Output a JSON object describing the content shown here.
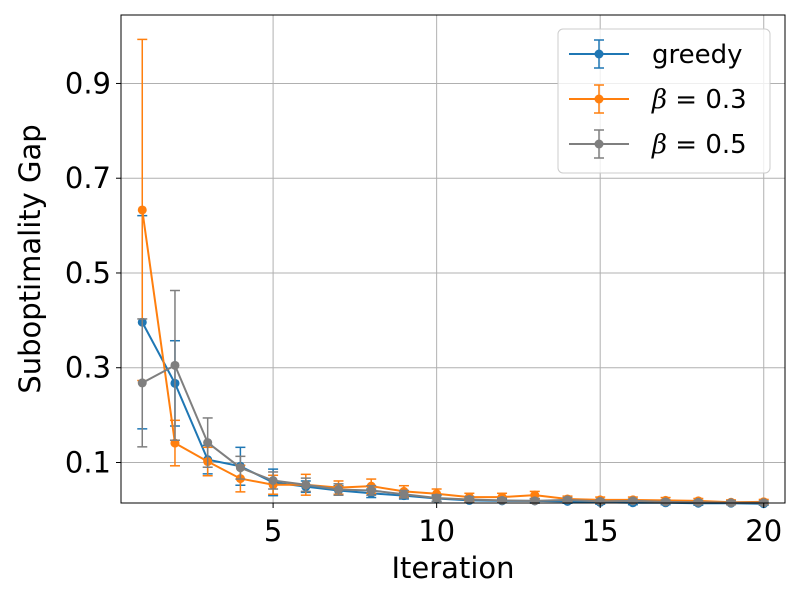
{
  "chart_data": {
    "type": "line",
    "title": "",
    "xlabel": "Iteration",
    "ylabel": "Suboptimality Gap",
    "xlim": [
      0.35,
      20.65
    ],
    "ylim": [
      0.0145,
      1.0445
    ],
    "xticks": [
      5,
      10,
      15,
      20
    ],
    "xtick_labels": [
      "5",
      "10",
      "15",
      "20"
    ],
    "yticks": [
      0.1,
      0.3,
      0.5,
      0.7,
      0.9
    ],
    "ytick_labels": [
      "0.1",
      "0.3",
      "0.5",
      "0.7",
      "0.9"
    ],
    "grid": true,
    "legend_position": "top-right",
    "x": [
      1,
      2,
      3,
      4,
      5,
      6,
      7,
      8,
      9,
      10,
      11,
      12,
      13,
      14,
      15,
      16,
      17,
      18,
      19,
      20
    ],
    "series": [
      {
        "name": "greedy",
        "legend_symbol": "",
        "legend_text": "greedy",
        "color": "#1f77b4",
        "values": [
          0.396,
          0.267,
          0.106,
          0.092,
          0.058,
          0.049,
          0.041,
          0.035,
          0.03,
          0.024,
          0.02,
          0.019,
          0.019,
          0.018,
          0.016,
          0.015,
          0.015,
          0.014,
          0.014,
          0.013
        ],
        "errors": [
          0.225,
          0.09,
          0.03,
          0.04,
          0.028,
          0.012,
          0.01,
          0.009,
          0.007,
          0.006,
          0.005,
          0.004,
          0.004,
          0.004,
          0.004,
          0.004,
          0.004,
          0.004,
          0.003,
          0.003
        ]
      },
      {
        "name": "β = 0.3",
        "legend_symbol": "β",
        "legend_text": " = 0.3",
        "color": "#ff7f0e",
        "values": [
          0.633,
          0.141,
          0.102,
          0.066,
          0.053,
          0.053,
          0.047,
          0.05,
          0.039,
          0.034,
          0.027,
          0.027,
          0.031,
          0.023,
          0.021,
          0.021,
          0.02,
          0.019,
          0.016,
          0.017
        ],
        "errors": [
          0.36,
          0.048,
          0.03,
          0.028,
          0.02,
          0.022,
          0.014,
          0.015,
          0.012,
          0.01,
          0.008,
          0.008,
          0.008,
          0.006,
          0.006,
          0.006,
          0.006,
          0.005,
          0.005,
          0.005
        ]
      },
      {
        "name": "β = 0.5",
        "legend_symbol": "β",
        "legend_text": " = 0.5",
        "color": "#7f7f7f",
        "values": [
          0.268,
          0.305,
          0.142,
          0.089,
          0.062,
          0.053,
          0.043,
          0.041,
          0.033,
          0.025,
          0.022,
          0.02,
          0.019,
          0.021,
          0.018,
          0.019,
          0.017,
          0.016,
          0.015,
          0.015
        ],
        "errors": [
          0.135,
          0.158,
          0.052,
          0.024,
          0.018,
          0.014,
          0.012,
          0.01,
          0.008,
          0.007,
          0.006,
          0.005,
          0.005,
          0.005,
          0.004,
          0.004,
          0.004,
          0.004,
          0.004,
          0.004
        ]
      }
    ]
  }
}
